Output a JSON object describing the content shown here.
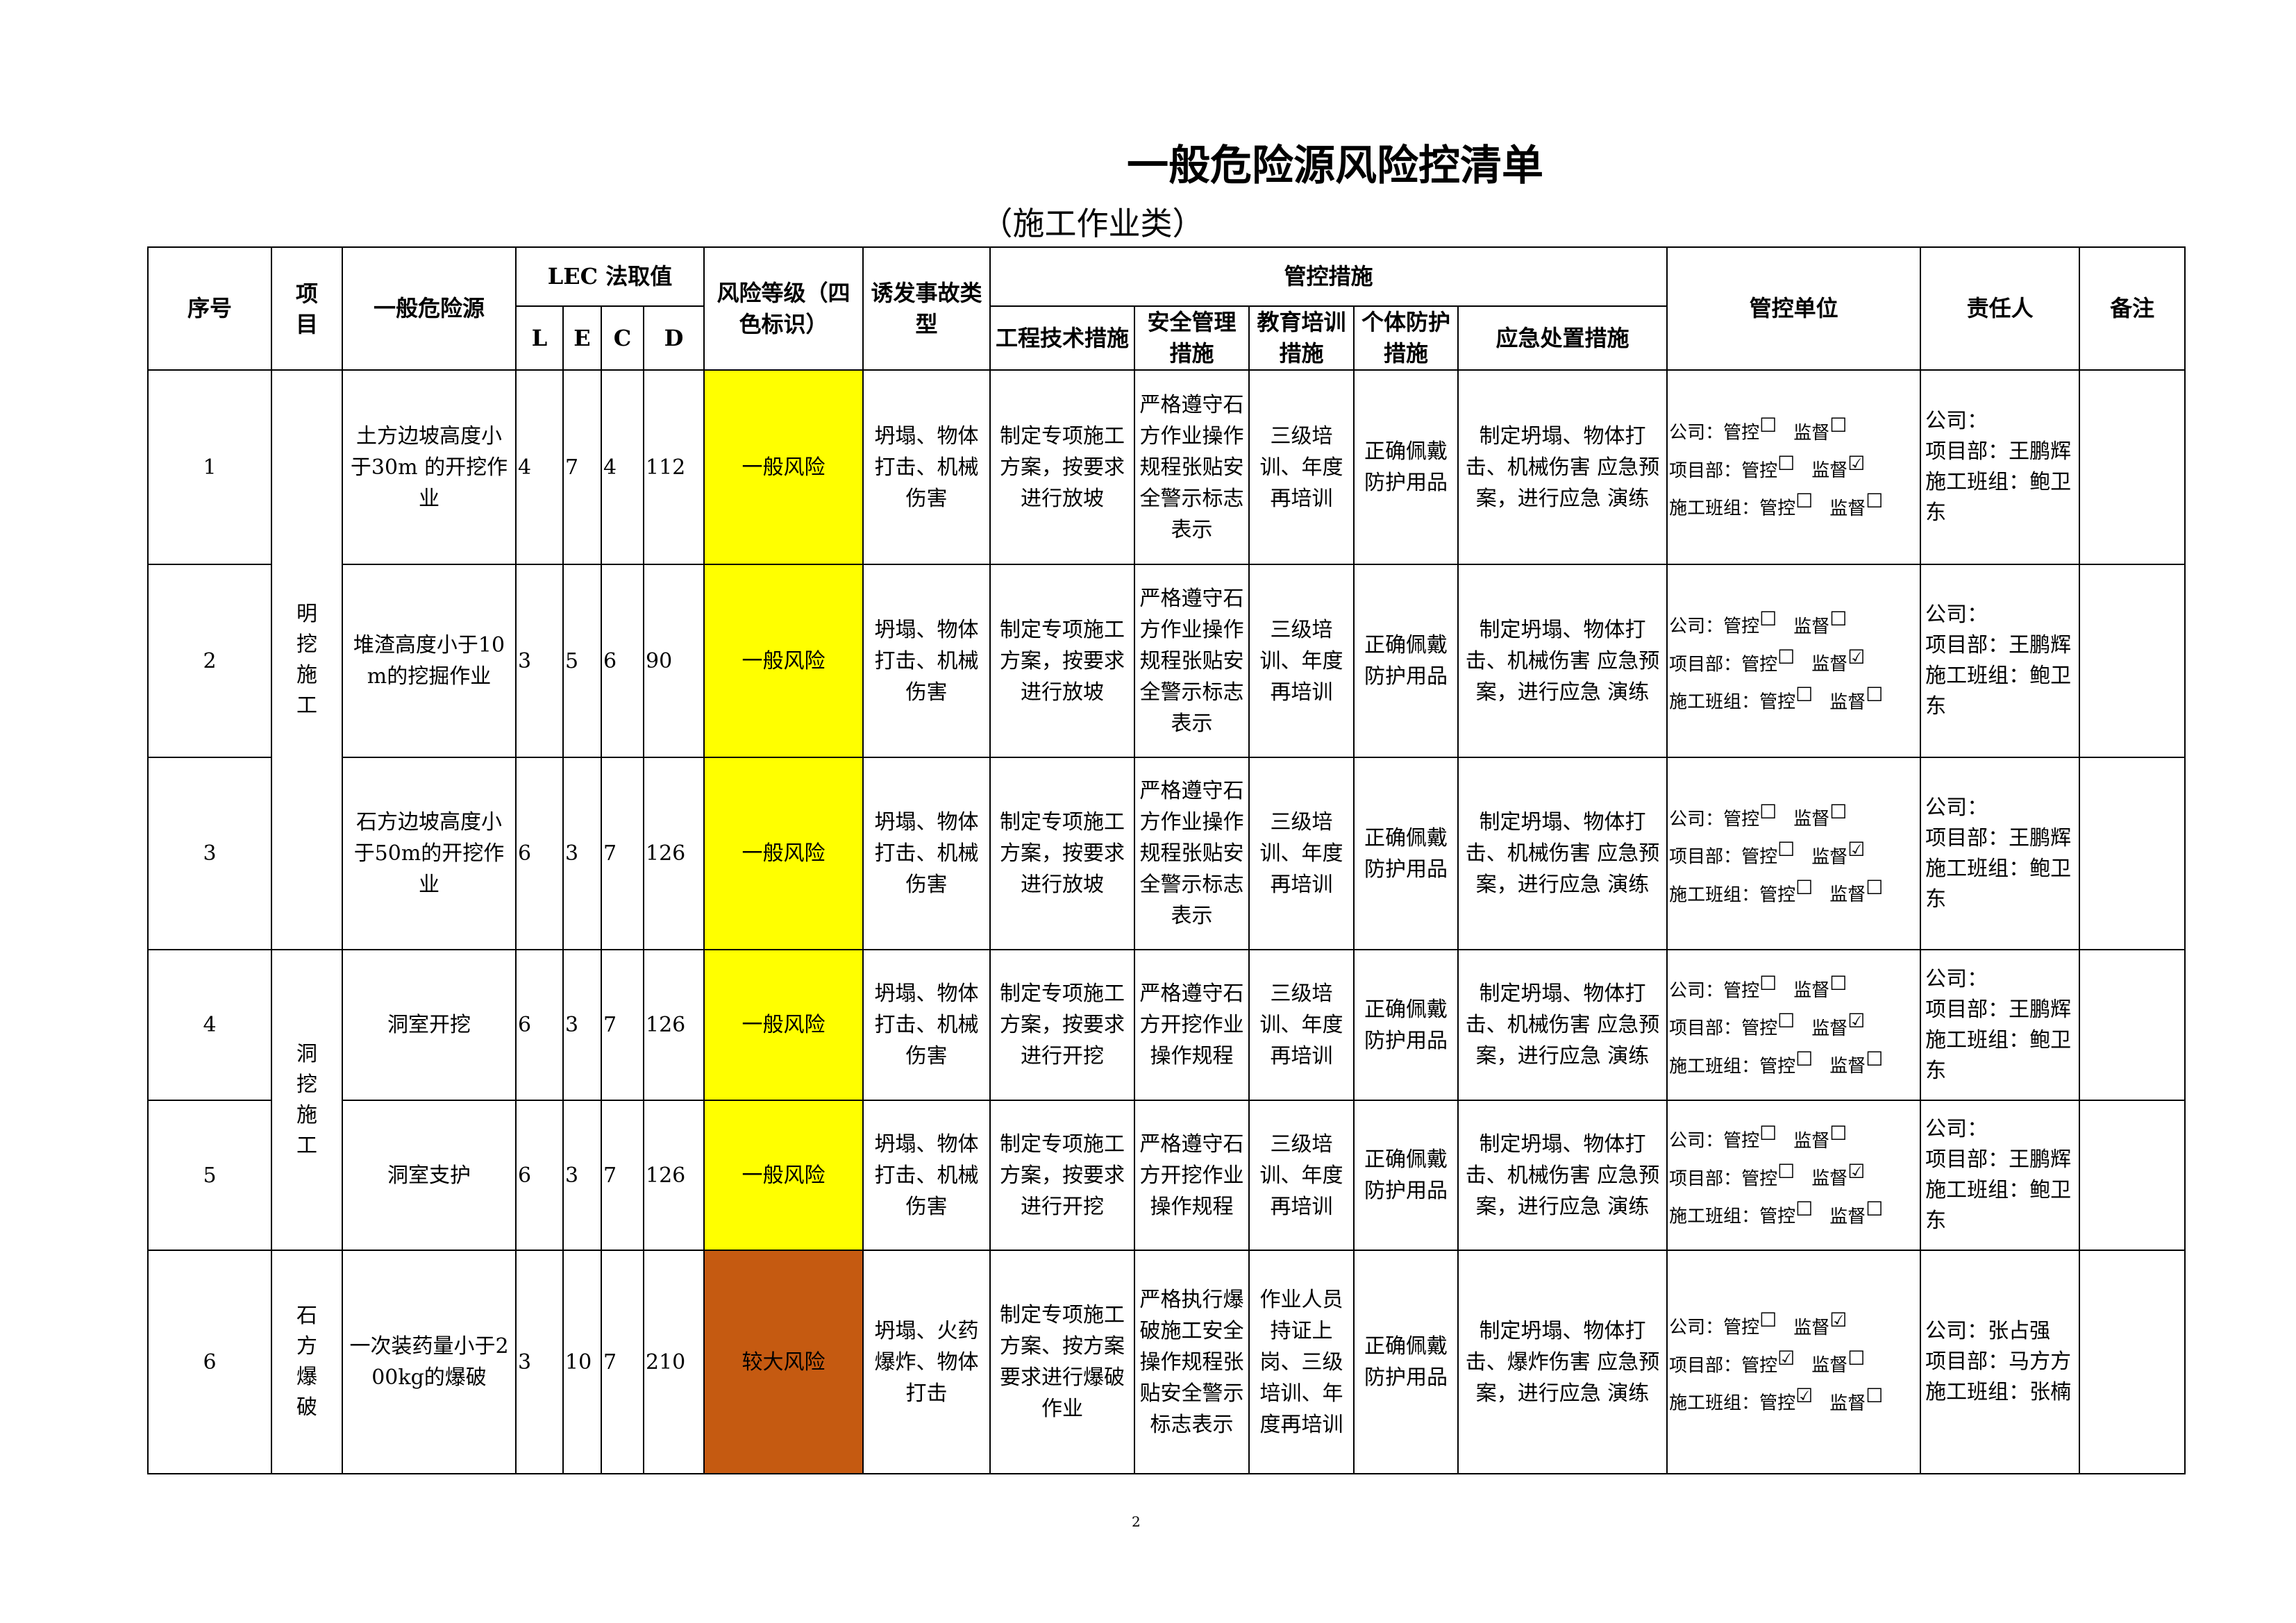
{
  "title": "一般危险源风险控清单",
  "subtitle": "（施工作业类）",
  "page_number": "2",
  "colors": {
    "general_risk": "#ffff00",
    "major_risk": "#c55a11"
  },
  "headers": {
    "seq": "序号",
    "item": "项目",
    "hazard": "一般危险源",
    "lec": "LEC 法取值",
    "L": "L",
    "E": "E",
    "C": "C",
    "D": "D",
    "risk_level": "风险等级（四色标识）",
    "accident_type": "诱发事故类型",
    "control_measures": "管控措施",
    "engineering": "工程技术措施",
    "safety_mgmt": "安全管理措施",
    "training": "教育培训措施",
    "ppe": "个体防护措施",
    "emergency": "应急处置措施",
    "control_unit": "管控单位",
    "responsible": "责任人",
    "remarks": "备注"
  },
  "unit_labels": {
    "company": "公司：",
    "project": "项目部：",
    "team": "施工班组：",
    "control": "管控",
    "supervise": "监督"
  },
  "item_groups": [
    {
      "label": "明挖施工",
      "rows": 3
    },
    {
      "label": "洞挖施工",
      "rows": 2
    },
    {
      "label": "石方爆破",
      "rows": 1
    }
  ],
  "rows": [
    {
      "seq": "1",
      "hazard": "土方边坡高度小于30m 的开挖作业",
      "L": "4",
      "E": "7",
      "C": "4",
      "D": "112",
      "risk": "一般风险",
      "risk_color": "yellow",
      "accident": "坍塌、物体打击、机械伤害",
      "engineering": "制定专项施工方案，按要求进行放坡",
      "safety": "严格遵守石方作业操作规程张贴安全警示标志表示",
      "training": "三级培训、年度再培训",
      "ppe": "正确佩戴防护用品",
      "emergency": "制定坍塌、物体打击、机械伤害 应急预案，进行应急 演练",
      "units": {
        "company": [
          false,
          false
        ],
        "project": [
          false,
          true
        ],
        "team": [
          false,
          false
        ]
      },
      "responsible": [
        "公司：",
        "项目部：王鹏辉",
        "施工班组：鲍卫东"
      ],
      "remarks": ""
    },
    {
      "seq": "2",
      "hazard": "堆渣高度小于10m的挖掘作业",
      "L": "3",
      "E": "5",
      "C": "6",
      "D": "90",
      "risk": "一般风险",
      "risk_color": "yellow",
      "accident": "坍塌、物体打击、机械伤害",
      "engineering": "制定专项施工方案，按要求进行放坡",
      "safety": "严格遵守石方作业操作规程张贴安全警示标志表示",
      "training": "三级培训、年度再培训",
      "ppe": "正确佩戴防护用品",
      "emergency": "制定坍塌、物体打击、机械伤害 应急预案，进行应急 演练",
      "units": {
        "company": [
          false,
          false
        ],
        "project": [
          false,
          true
        ],
        "team": [
          false,
          false
        ]
      },
      "responsible": [
        "公司：",
        "项目部：王鹏辉",
        "施工班组：鲍卫东"
      ],
      "remarks": ""
    },
    {
      "seq": "3",
      "hazard": "石方边坡高度小于50m的开挖作业",
      "L": "6",
      "E": "3",
      "C": "7",
      "D": "126",
      "risk": "一般风险",
      "risk_color": "yellow",
      "accident": "坍塌、物体打击、机械伤害",
      "engineering": "制定专项施工方案，按要求进行放坡",
      "safety": "严格遵守石方作业操作规程张贴安全警示标志表示",
      "training": "三级培训、年度再培训",
      "ppe": "正确佩戴防护用品",
      "emergency": "制定坍塌、物体打击、机械伤害 应急预案，进行应急 演练",
      "units": {
        "company": [
          false,
          false
        ],
        "project": [
          false,
          true
        ],
        "team": [
          false,
          false
        ]
      },
      "responsible": [
        "公司：",
        "项目部：王鹏辉",
        "施工班组：鲍卫东"
      ],
      "remarks": ""
    },
    {
      "seq": "4",
      "hazard": "洞室开挖",
      "L": "6",
      "E": "3",
      "C": "7",
      "D": "126",
      "risk": "一般风险",
      "risk_color": "yellow",
      "accident": "坍塌、物体打击、机械伤害",
      "engineering": "制定专项施工方案，按要求进行开挖",
      "safety": "严格遵守石方开挖作业操作规程",
      "training": "三级培训、年度再培训",
      "ppe": "正确佩戴防护用品",
      "emergency": "制定坍塌、物体打击、机械伤害 应急预案，进行应急 演练",
      "units": {
        "company": [
          false,
          false
        ],
        "project": [
          false,
          true
        ],
        "team": [
          false,
          false
        ]
      },
      "responsible": [
        "公司：",
        "项目部：王鹏辉",
        "施工班组：鲍卫东"
      ],
      "remarks": ""
    },
    {
      "seq": "5",
      "hazard": "洞室支护",
      "L": "6",
      "E": "3",
      "C": "7",
      "D": "126",
      "risk": "一般风险",
      "risk_color": "yellow",
      "accident": "坍塌、物体打击、机械伤害",
      "engineering": "制定专项施工方案，按要求进行开挖",
      "safety": "严格遵守石方开挖作业操作规程",
      "training": "三级培训、年度再培训",
      "ppe": "正确佩戴防护用品",
      "emergency": "制定坍塌、物体打击、机械伤害 应急预案，进行应急 演练",
      "units": {
        "company": [
          false,
          false
        ],
        "project": [
          false,
          true
        ],
        "team": [
          false,
          false
        ]
      },
      "responsible": [
        "公司：",
        "项目部：王鹏辉",
        "施工班组：鲍卫东"
      ],
      "remarks": ""
    },
    {
      "seq": "6",
      "hazard": "一次装药量小于200kg的爆破",
      "L": "3",
      "E": "10",
      "C": "7",
      "D": "210",
      "risk": "较大风险",
      "risk_color": "brown",
      "accident": "坍塌、火药爆炸、物体打击",
      "engineering": "制定专项施工方案、按方案要求进行爆破作业",
      "safety": "严格执行爆破施工安全操作规程张贴安全警示标志表示",
      "training": "作业人员持证上岗、三级培训、年度再培训",
      "ppe": "正确佩戴防护用品",
      "emergency": "制定坍塌、物体打击、爆炸伤害 应急预案，进行应急 演练",
      "units": {
        "company": [
          false,
          true
        ],
        "project": [
          true,
          false
        ],
        "team": [
          true,
          false
        ]
      },
      "responsible": [
        "公司：张占强",
        "项目部：马方方",
        "施工班组：张楠"
      ],
      "remarks": ""
    }
  ]
}
